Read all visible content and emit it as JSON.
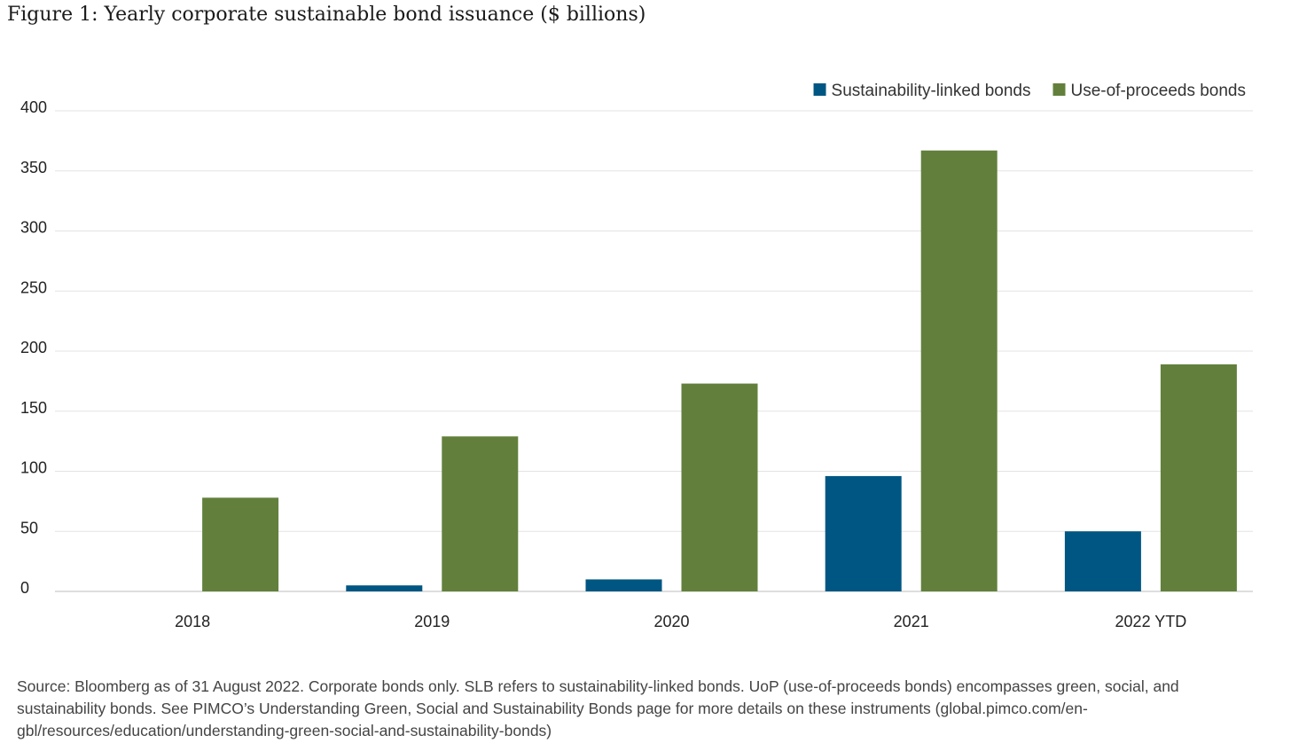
{
  "title": "Figure 1: Yearly corporate sustainable bond issuance ($ billions)",
  "source": "Source: Bloomberg as of 31 August 2022. Corporate bonds only. SLB refers to sustainability-linked bonds. UoP (use-of-proceeds bonds) encompasses green, social, and sustainability bonds. See PIMCO’s Understanding Green, Social and Sustainability Bonds page for more details on these instruments (global.pimco.com/en-gbl/resources/education/understanding-green-social-and-sustainability-bonds)",
  "chart_data": {
    "type": "bar",
    "categories": [
      "2018",
      "2019",
      "2020",
      "2021",
      "2022 YTD"
    ],
    "series": [
      {
        "name": "Sustainability-linked bonds",
        "values": [
          0,
          5,
          10,
          96,
          50
        ],
        "color": "#005682"
      },
      {
        "name": "Use-of-proceeds bonds",
        "values": [
          78,
          129,
          173,
          367,
          189
        ],
        "color": "#62803c"
      }
    ],
    "yticks": [
      0,
      50,
      100,
      150,
      200,
      250,
      300,
      350,
      400
    ],
    "ylim": [
      0,
      400
    ],
    "grid": true,
    "legend": "top-right"
  }
}
